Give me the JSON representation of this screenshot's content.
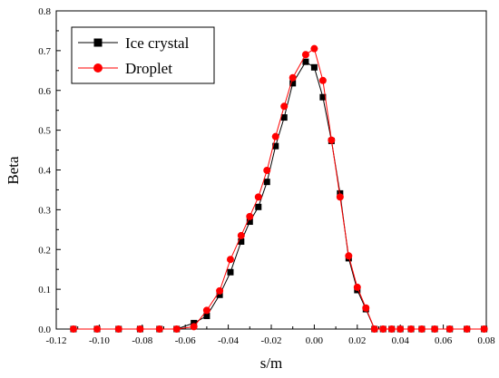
{
  "chart_data": {
    "type": "line",
    "title": "",
    "xlabel": "s/m",
    "ylabel": "Beta",
    "xlim": [
      -0.12,
      0.08
    ],
    "ylim": [
      0.0,
      0.8
    ],
    "x_ticks": [
      "-0.12",
      "-0.10",
      "-0.08",
      "-0.06",
      "-0.04",
      "-0.02",
      "0.00",
      "0.02",
      "0.04",
      "0.06",
      "0.08"
    ],
    "y_ticks": [
      "0.0",
      "0.1",
      "0.2",
      "0.3",
      "0.4",
      "0.5",
      "0.6",
      "0.7",
      "0.8"
    ],
    "grid": false,
    "legend_position": "top-left",
    "series": [
      {
        "name": "Ice crystal",
        "color": "#000000",
        "marker": "square",
        "points": [
          [
            -0.112,
            0.0
          ],
          [
            -0.101,
            0.0
          ],
          [
            -0.091,
            0.0
          ],
          [
            -0.081,
            0.0
          ],
          [
            -0.072,
            0.0
          ],
          [
            -0.064,
            0.0
          ],
          [
            -0.056,
            0.015
          ],
          [
            -0.05,
            0.033
          ],
          [
            -0.044,
            0.086
          ],
          [
            -0.039,
            0.143
          ],
          [
            -0.034,
            0.22
          ],
          [
            -0.03,
            0.27
          ],
          [
            -0.026,
            0.307
          ],
          [
            -0.022,
            0.37
          ],
          [
            -0.018,
            0.46
          ],
          [
            -0.014,
            0.532
          ],
          [
            -0.01,
            0.618
          ],
          [
            -0.004,
            0.672
          ],
          [
            0.0,
            0.658
          ],
          [
            0.004,
            0.583
          ],
          [
            0.008,
            0.473
          ],
          [
            0.012,
            0.341
          ],
          [
            0.016,
            0.178
          ],
          [
            0.02,
            0.098
          ],
          [
            0.024,
            0.05
          ],
          [
            0.028,
            0.0
          ],
          [
            0.032,
            0.0
          ],
          [
            0.036,
            0.0
          ],
          [
            0.04,
            0.0
          ],
          [
            0.045,
            0.0
          ],
          [
            0.05,
            0.0
          ],
          [
            0.056,
            0.0
          ],
          [
            0.063,
            0.0
          ],
          [
            0.071,
            0.0
          ],
          [
            0.079,
            0.0
          ]
        ]
      },
      {
        "name": "Droplet",
        "color": "#ff0000",
        "marker": "circle",
        "points": [
          [
            -0.112,
            0.0
          ],
          [
            -0.101,
            0.0
          ],
          [
            -0.091,
            0.0
          ],
          [
            -0.081,
            0.0
          ],
          [
            -0.072,
            0.0
          ],
          [
            -0.064,
            0.0
          ],
          [
            -0.056,
            0.006
          ],
          [
            -0.05,
            0.047
          ],
          [
            -0.044,
            0.096
          ],
          [
            -0.039,
            0.175
          ],
          [
            -0.034,
            0.235
          ],
          [
            -0.03,
            0.283
          ],
          [
            -0.026,
            0.332
          ],
          [
            -0.022,
            0.399
          ],
          [
            -0.018,
            0.484
          ],
          [
            -0.014,
            0.56
          ],
          [
            -0.01,
            0.632
          ],
          [
            -0.004,
            0.69
          ],
          [
            0.0,
            0.705
          ],
          [
            0.004,
            0.625
          ],
          [
            0.008,
            0.475
          ],
          [
            0.012,
            0.332
          ],
          [
            0.016,
            0.184
          ],
          [
            0.02,
            0.105
          ],
          [
            0.024,
            0.053
          ],
          [
            0.028,
            0.0
          ],
          [
            0.032,
            0.0
          ],
          [
            0.036,
            0.0
          ],
          [
            0.04,
            0.0
          ],
          [
            0.045,
            0.0
          ],
          [
            0.05,
            0.0
          ],
          [
            0.056,
            0.0
          ],
          [
            0.063,
            0.0
          ],
          [
            0.071,
            0.0
          ],
          [
            0.079,
            0.0
          ]
        ]
      }
    ]
  }
}
